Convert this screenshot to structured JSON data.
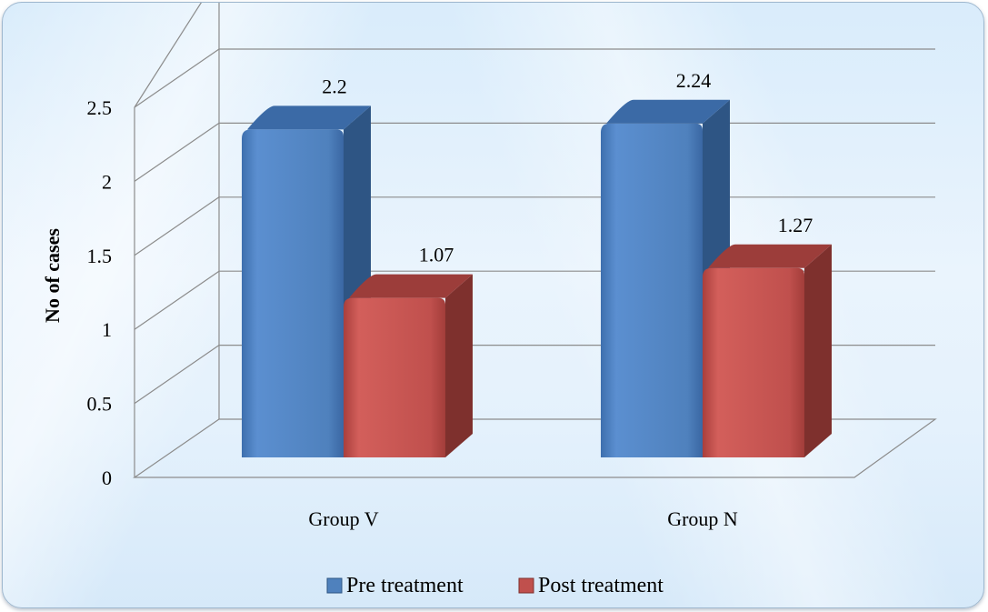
{
  "chart_data": {
    "type": "bar",
    "title": "",
    "xlabel": "",
    "ylabel": "No of cases",
    "ylim": [
      0,
      2.5
    ],
    "yticks": [
      "0",
      "0.5",
      "1",
      "1.5",
      "2",
      "2.5"
    ],
    "categories": [
      "Group V",
      "Group N"
    ],
    "series": [
      {
        "name": "Pre treatment",
        "values": [
          2.2,
          2.24
        ],
        "labels": [
          "2.2",
          "2.24"
        ],
        "color": "#4f81bd",
        "side_color": "#2e5584",
        "top_color": "#3b6aa6"
      },
      {
        "name": "Post treatment",
        "values": [
          1.07,
          1.27
        ],
        "labels": [
          "1.07",
          "1.27"
        ],
        "color": "#c0504d",
        "side_color": "#7e302d",
        "top_color": "#9c3d3a"
      }
    ],
    "grid": true,
    "legend_position": "bottom",
    "style": "3d-clustered-column"
  }
}
